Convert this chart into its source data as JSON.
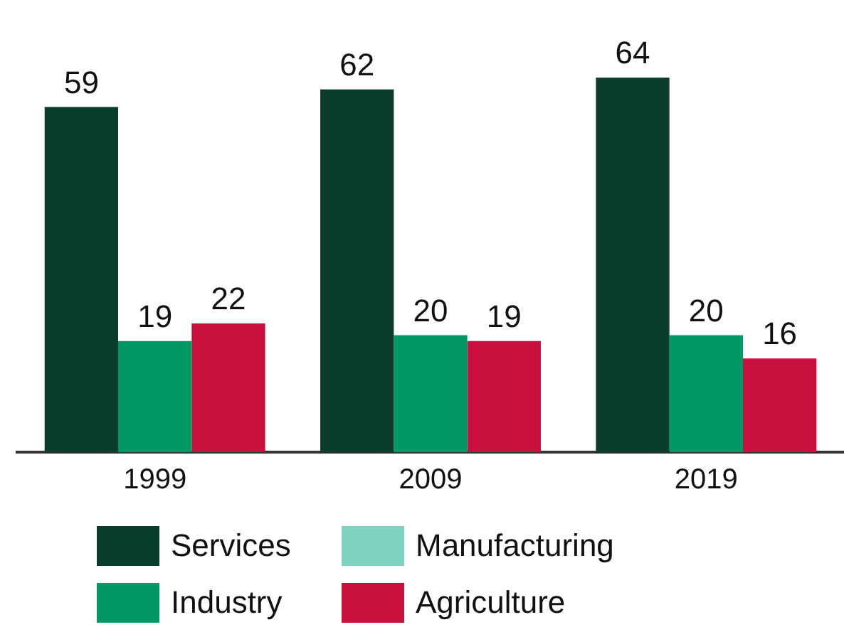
{
  "chart_data": {
    "type": "bar",
    "categories": [
      "1999",
      "2009",
      "2019"
    ],
    "series": [
      {
        "name": "Services",
        "color": "#0b3d2c",
        "values": [
          59,
          62,
          64
        ]
      },
      {
        "name": "Industry",
        "color": "#009966",
        "values": [
          19,
          20,
          20
        ]
      },
      {
        "name": "Manufacturing",
        "color": "#7fd1c0",
        "values": [
          null,
          null,
          null
        ]
      },
      {
        "name": "Agriculture",
        "color": "#c8103e",
        "values": [
          22,
          19,
          16
        ]
      }
    ],
    "data_labels": true,
    "legend": "bottom",
    "grid": false
  }
}
